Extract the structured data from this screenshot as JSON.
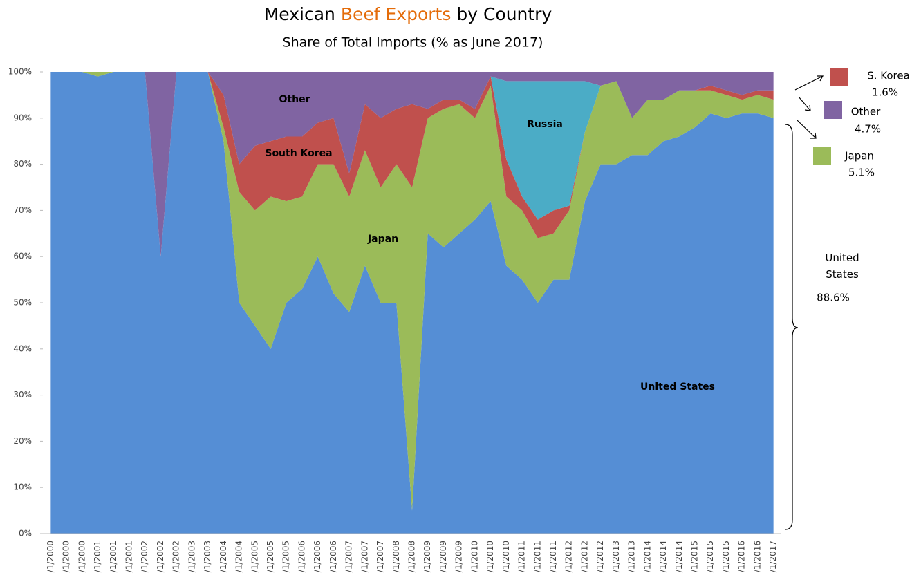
{
  "chart_data": {
    "type": "stacked_area",
    "title": {
      "before": "Mexican",
      "highlight": "Beef Exports",
      "after": "by Country"
    },
    "title_highlight_color": "#e46c0a",
    "subtitle": "Share of Total Imports (% as  June 2017)",
    "categories": [
      "/1/2000",
      "/1/2000",
      "/1/2000",
      "/1/2001",
      "/1/2001",
      "/1/2001",
      "/1/2002",
      "/1/2002",
      "/1/2002",
      "/1/2003",
      "/1/2003",
      "/1/2004",
      "/1/2004",
      "/1/2005",
      "/1/2005",
      "/1/2005",
      "/1/2006",
      "/1/2006",
      "/1/2006",
      "/1/2007",
      "/1/2007",
      "/1/2007",
      "/1/2008",
      "/1/2008",
      "/1/2009",
      "/1/2009",
      "/1/2009",
      "/1/2010",
      "/1/2010",
      "/1/2010",
      "/1/2011",
      "/1/2011",
      "/1/2011",
      "/1/2012",
      "/1/2012",
      "/1/2012",
      "/1/2013",
      "/1/2013",
      "/1/2014",
      "/1/2014",
      "/1/2014",
      "/1/2015",
      "/1/2015",
      "/1/2015",
      "/1/2016",
      "/1/2016",
      "/1/2017"
    ],
    "series": [
      {
        "name": "United States",
        "color": "#558ed5",
        "values": [
          100,
          100,
          100,
          99,
          100,
          100,
          100,
          60,
          100,
          100,
          100,
          85,
          50,
          45,
          40,
          50,
          53,
          60,
          52,
          48,
          58,
          50,
          50,
          5,
          65,
          62,
          65,
          68,
          72,
          58,
          55,
          50,
          55,
          55,
          72,
          80,
          80,
          82,
          82,
          85,
          86,
          88,
          91,
          90,
          91,
          91,
          90
        ]
      },
      {
        "name": "Japan",
        "color": "#9bbb59",
        "values": [
          0,
          0,
          0,
          1,
          0,
          0,
          0,
          0,
          0,
          0,
          0,
          3,
          24,
          25,
          33,
          22,
          20,
          20,
          28,
          25,
          25,
          25,
          30,
          70,
          25,
          30,
          28,
          22,
          25,
          15,
          15,
          14,
          10,
          15,
          15,
          17,
          18,
          8,
          12,
          9,
          10,
          8,
          5,
          5,
          3,
          4,
          4
        ]
      },
      {
        "name": "South Korea",
        "color": "#c0504d",
        "values": [
          0,
          0,
          0,
          0,
          0,
          0,
          0,
          0,
          0,
          0,
          0,
          7,
          6,
          14,
          12,
          14,
          13,
          9,
          10,
          5,
          10,
          15,
          12,
          18,
          2,
          2,
          1,
          2,
          2,
          8,
          3,
          4,
          5,
          1,
          0,
          0,
          0,
          0,
          0,
          0,
          0,
          0,
          1,
          1,
          1,
          1,
          2
        ]
      },
      {
        "name": "Russia",
        "color": "#4bacc6",
        "values": [
          0,
          0,
          0,
          0,
          0,
          0,
          0,
          0,
          0,
          0,
          0,
          0,
          0,
          0,
          0,
          0,
          0,
          0,
          0,
          0,
          0,
          0,
          0,
          0,
          0,
          0,
          0,
          0,
          0,
          17,
          25,
          30,
          28,
          27,
          11,
          0,
          0,
          0,
          0,
          0,
          0,
          0,
          0,
          0,
          0,
          0,
          0
        ]
      },
      {
        "name": "Other",
        "color": "#8064a2",
        "values": [
          0,
          0,
          0,
          0,
          0,
          0,
          0,
          40,
          0,
          0,
          0,
          5,
          20,
          16,
          15,
          14,
          14,
          11,
          10,
          22,
          7,
          10,
          8,
          7,
          8,
          6,
          6,
          8,
          1,
          2,
          2,
          2,
          2,
          2,
          2,
          3,
          2,
          10,
          6,
          6,
          4,
          4,
          3,
          4,
          5,
          4,
          4
        ]
      }
    ],
    "ylim": [
      0,
      100
    ],
    "yticks": [
      {
        "value": 0,
        "label": "0%"
      },
      {
        "value": 10,
        "label": "10%"
      },
      {
        "value": 20,
        "label": "20%"
      },
      {
        "value": 30,
        "label": "30%"
      },
      {
        "value": 40,
        "label": "40%"
      },
      {
        "value": 50,
        "label": "50%"
      },
      {
        "value": 60,
        "label": "60%"
      },
      {
        "value": 70,
        "label": "70%"
      },
      {
        "value": 80,
        "label": "80%"
      },
      {
        "value": 90,
        "label": "90%"
      },
      {
        "value": 100,
        "label": "100%"
      }
    ],
    "callouts": [
      {
        "label": "S. Korea",
        "value": 1.6,
        "value_label": "1.6%",
        "color": "#c0504d"
      },
      {
        "label": "Other",
        "value": 4.7,
        "value_label": "4.7%",
        "color": "#8064a2"
      },
      {
        "label": "Japan",
        "value": 5.1,
        "value_label": "5.1%",
        "color": "#9bbb59"
      },
      {
        "label": "United States",
        "value": 88.6,
        "value_label": "88.6%"
      }
    ]
  }
}
